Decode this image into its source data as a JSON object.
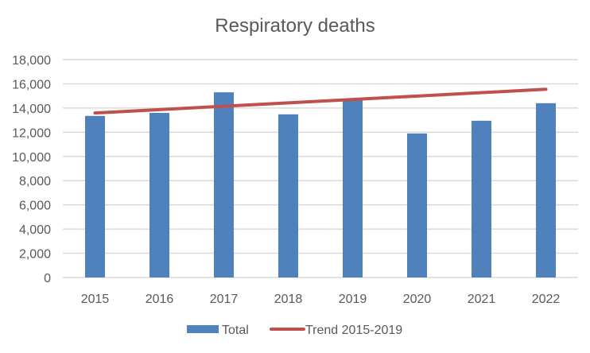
{
  "chart_data": {
    "type": "bar",
    "title": "Respiratory deaths",
    "xlabel": "",
    "ylabel": "",
    "categories": [
      "2015",
      "2016",
      "2017",
      "2018",
      "2019",
      "2020",
      "2021",
      "2022"
    ],
    "series": [
      {
        "name": "Total",
        "type": "bar",
        "color": "#4f81bd",
        "values": [
          13350,
          13600,
          15300,
          13480,
          14720,
          11900,
          12950,
          14400
        ]
      },
      {
        "name": "Trend 2015-2019",
        "type": "line",
        "color": "#c0504d",
        "values": [
          13590,
          13870,
          14150,
          14430,
          14710,
          14990,
          15270,
          15550
        ]
      }
    ],
    "ylim": [
      0,
      18000
    ],
    "yticks": [
      0,
      2000,
      4000,
      6000,
      8000,
      10000,
      12000,
      14000,
      16000,
      18000
    ],
    "ytick_labels": [
      "0",
      "2,000",
      "4,000",
      "6,000",
      "8,000",
      "10,000",
      "12,000",
      "14,000",
      "16,000",
      "18,000"
    ],
    "grid": true,
    "legend": "bottom"
  }
}
